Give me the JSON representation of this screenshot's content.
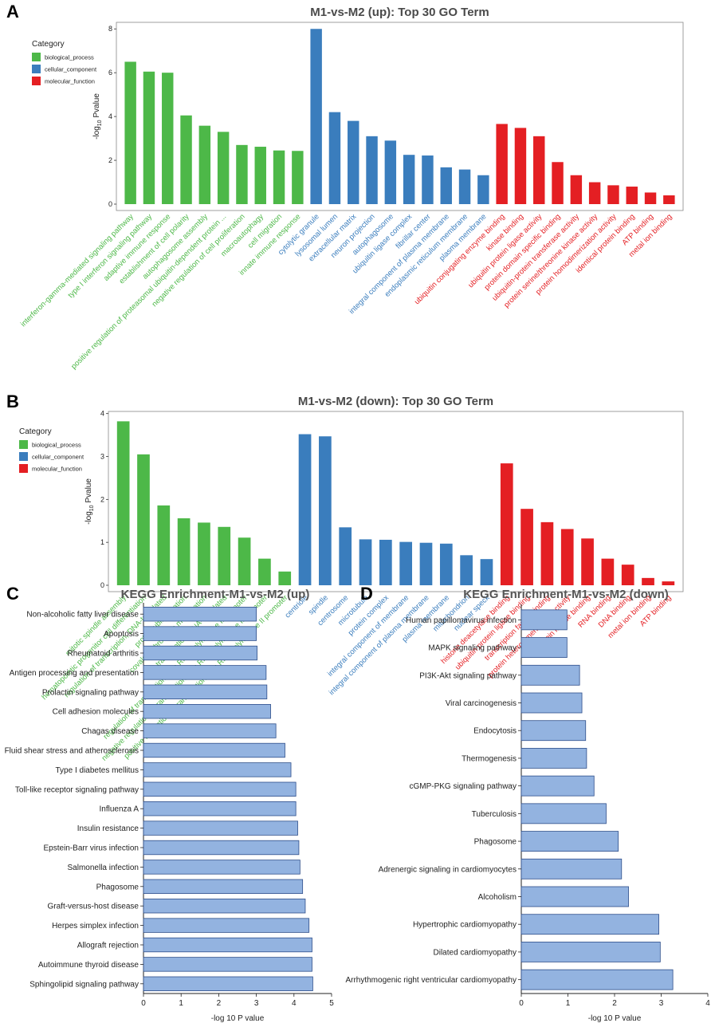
{
  "colors": {
    "biological_process": "#4db848",
    "cellular_component": "#3a7dbd",
    "molecular_function": "#e41f23",
    "kegg_bar": "#93b3e0",
    "kegg_edge": "#2e4e8a"
  },
  "chart_data": [
    {
      "id": "A",
      "type": "bar",
      "panel_label": "A",
      "title": "M1-vs-M2 (up): Top 30 GO Term",
      "ylabel_prefix": "-log",
      "ylabel_sub": "10",
      "ylabel_suffix": " Pvalue",
      "ylim": [
        0,
        8.3
      ],
      "yticks": [
        "0",
        "2",
        "4",
        "6",
        "8"
      ],
      "legend_title": "Category",
      "legend": [
        "biological_process",
        "cellular_component",
        "molecular_function"
      ],
      "categories": [
        "interferon-gamma-mediated signaling pathway",
        "type I interferon signaling pathway",
        "adaptive immune response",
        "establishment of cell polarity",
        "autophagosome assembly",
        "positive regulation of proteasomal ubiquitin-dependent protein ...",
        "negative regulation of cell proliferation",
        "macroautophagy",
        "cell migration",
        "innate immune response",
        "cytolytic granule",
        "lysosomal lumen",
        "extracellular matrix",
        "neuron projection",
        "autophagosome",
        "ubiquitin ligase complex",
        "fibrillar center",
        "integral component of plasma membrane",
        "endoplasmic reticulum membrane",
        "plasma membrane",
        "ubiquitin conjugating enzyme binding",
        "kinase binding",
        "ubiquitin protein ligase activity",
        "protein domain specific binding",
        "ubiquitin-protein transferase activity",
        "protein serine/threonine kinase activity",
        "protein homodimerization activity",
        "identical protein binding",
        "ATP binding",
        "metal ion binding"
      ],
      "groups": [
        0,
        0,
        0,
        0,
        0,
        0,
        0,
        0,
        0,
        0,
        1,
        1,
        1,
        1,
        1,
        1,
        1,
        1,
        1,
        1,
        2,
        2,
        2,
        2,
        2,
        2,
        2,
        2,
        2,
        2
      ],
      "values": [
        6.5,
        6.05,
        6.0,
        4.05,
        3.58,
        3.3,
        2.7,
        2.62,
        2.45,
        2.43,
        8.0,
        4.2,
        3.8,
        3.1,
        2.9,
        2.25,
        2.22,
        1.68,
        1.58,
        1.32,
        3.66,
        3.48,
        3.1,
        1.92,
        1.32,
        1.0,
        0.86,
        0.8,
        0.53,
        0.4
      ]
    },
    {
      "id": "B",
      "type": "bar",
      "panel_label": "B",
      "title": "M1-vs-M2 (down): Top 30 GO Term",
      "ylabel_prefix": "-log",
      "ylabel_sub": "10",
      "ylabel_suffix": " Pvalue",
      "ylim": [
        0,
        4.05
      ],
      "yticks": [
        "0",
        "1",
        "2",
        "3",
        "4"
      ],
      "legend_title": "Category",
      "legend": [
        "biological_process",
        "cellular_component",
        "molecular_function"
      ],
      "categories": [
        "mitotic spindle assembly",
        "hematopoietic progenitor cell differentiation",
        "regulation of transcription, DNA-templated",
        "protein ubiquitination",
        "covalent chromatin modification",
        "transcription, DNA-templated",
        "regulation of transcription from RNA polymerase II promoter",
        "negative regulation of transcription from RNA polymerase II promoter",
        "positive regulation of transcription from RNA polymerase II promoter",
        "centriole",
        "spindle",
        "centrosome",
        "microtubule",
        "protein complex",
        "integral component of membrane",
        "integral component of plasma membrane",
        "plasma membrane",
        "mitochondrion",
        "nuclear speck",
        "histone deacetylase binding",
        "ubiquitin protein ligase binding",
        "transcription factor binding",
        "protein heterodimerization activity",
        "protein kinase binding",
        "RNA binding",
        "DNA binding",
        "metal ion binding",
        "ATP binding"
      ],
      "groups": [
        0,
        0,
        0,
        0,
        0,
        0,
        0,
        0,
        0,
        1,
        1,
        1,
        1,
        1,
        1,
        1,
        1,
        1,
        1,
        2,
        2,
        2,
        2,
        2,
        2,
        2,
        2,
        2
      ],
      "values": [
        3.82,
        3.05,
        1.86,
        1.56,
        1.46,
        1.36,
        1.11,
        0.62,
        0.32,
        3.52,
        3.47,
        1.35,
        1.07,
        1.06,
        1.01,
        0.99,
        0.97,
        0.7,
        0.61,
        2.84,
        1.78,
        1.47,
        1.31,
        1.09,
        0.62,
        0.48,
        0.17,
        0.09
      ]
    },
    {
      "id": "C",
      "type": "bar",
      "orientation": "horizontal",
      "panel_label": "C",
      "title": "KEGG Enrichment-M1-vs-M2 (up)",
      "xlabel": "-log 10 P value",
      "xlim": [
        0,
        5
      ],
      "xticks": [
        "0",
        "1",
        "2",
        "3",
        "4",
        "5"
      ],
      "categories": [
        "Non-alcoholic fatty liver disease",
        "Apoptosis",
        "Rheumatoid arthritis",
        "Antigen processing and presentation",
        "Prolactin signaling pathway",
        "Cell adhesion molecules",
        "Chagas disease",
        "Fluid shear stress and atherosclerosis",
        "Type I diabetes mellitus",
        "Toll-like receptor signaling pathway",
        "Influenza A",
        "Insulin resistance",
        "Epstein-Barr virus infection",
        "Salmonella infection",
        "Phagosome",
        "Graft-versus-host disease",
        "Herpes simplex infection",
        "Allograft rejection",
        "Autoimmune thyroid disease",
        "Sphingolipid signaling pathway"
      ],
      "values": [
        3.0,
        3.0,
        3.02,
        3.26,
        3.28,
        3.38,
        3.52,
        3.76,
        3.92,
        4.05,
        4.05,
        4.1,
        4.13,
        4.16,
        4.23,
        4.3,
        4.4,
        4.48,
        4.48,
        4.5
      ]
    },
    {
      "id": "D",
      "type": "bar",
      "orientation": "horizontal",
      "panel_label": "D",
      "title": "KEGG Enrichment-M1-vs-M2 (down)",
      "xlabel": "-log 10 P value",
      "xlim": [
        0,
        4
      ],
      "xticks": [
        "0",
        "1",
        "2",
        "3",
        "4"
      ],
      "categories": [
        "Human papillomavirus infection",
        "MAPK signaling pathway",
        "PI3K-Akt signaling pathway",
        "Viral carcinogenesis",
        "Endocytosis",
        "Thermogenesis",
        "cGMP-PKG signaling pathway",
        "Tuberculosis",
        "Phagosome",
        "Adrenergic signaling in cardiomyocytes",
        "Alcoholism",
        "Hypertrophic cardiomyopathy",
        "Dilated cardiomyopathy",
        "Arrhythmogenic right ventricular cardiomyopathy"
      ],
      "values": [
        0.98,
        0.98,
        1.25,
        1.3,
        1.38,
        1.4,
        1.56,
        1.82,
        2.08,
        2.15,
        2.3,
        2.95,
        2.98,
        3.25
      ]
    }
  ]
}
